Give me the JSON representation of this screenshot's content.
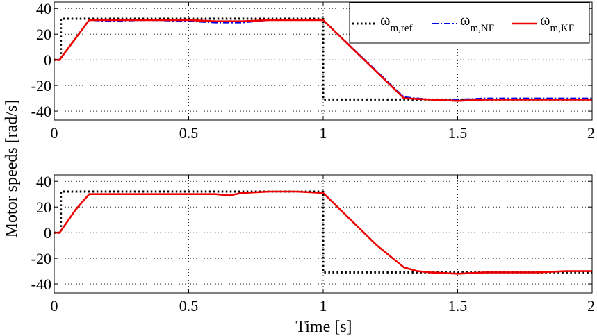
{
  "figure": {
    "ylabel": "Motor speeds [rad/s]",
    "xlabel": "Time [s]"
  },
  "colors": {
    "ref": "#000000",
    "nf": "#0000ee",
    "kf": "#ee0000"
  },
  "chart_data": [
    {
      "type": "line",
      "xlim": [
        0,
        2
      ],
      "ylim": [
        -47,
        45
      ],
      "xticks": [
        0,
        0.5,
        1,
        1.5,
        2
      ],
      "xtick_labels": [
        "0",
        "0.5",
        "1",
        "1.5",
        "2"
      ],
      "yticks": [
        40,
        20,
        0,
        -20,
        -40
      ],
      "ytick_labels": [
        "40",
        "20",
        "0",
        "-20",
        "-40"
      ],
      "grid": true,
      "legend_position": "top-right",
      "legend": [
        {
          "sym": "ω",
          "sub": "m,ref",
          "style": "dotted",
          "color_key": "ref"
        },
        {
          "sym": "ω",
          "sub": "m,NF",
          "style": "dashdot",
          "color_key": "nf"
        },
        {
          "sym": "ω",
          "sub": "m,KF",
          "style": "solid",
          "color_key": "kf"
        }
      ],
      "series": [
        {
          "key": "ref",
          "style": "dotted",
          "x": [
            0,
            0.025,
            0.025,
            1.0,
            1.0,
            2.0
          ],
          "y": [
            0,
            0,
            32,
            32,
            -31,
            -31
          ]
        },
        {
          "key": "nf",
          "style": "dashdot",
          "x": [
            0,
            0.02,
            0.13,
            0.2,
            0.35,
            0.5,
            0.6,
            0.7,
            0.8,
            0.9,
            1.0,
            1.3,
            1.4,
            1.5,
            1.6,
            1.7,
            1.8,
            1.9,
            2.0
          ],
          "y": [
            0,
            0,
            31,
            30,
            31,
            30,
            29,
            29,
            31,
            31,
            31,
            -29,
            -31,
            -31,
            -30,
            -30,
            -30,
            -30,
            -30
          ]
        },
        {
          "key": "kf",
          "style": "solid",
          "x": [
            0,
            0.02,
            0.13,
            0.2,
            0.35,
            0.5,
            0.6,
            0.7,
            0.8,
            0.9,
            1.0,
            1.3,
            1.4,
            1.5,
            1.6,
            1.7,
            1.8,
            1.9,
            2.0
          ],
          "y": [
            0,
            0,
            31,
            31,
            31,
            31,
            30,
            30,
            31,
            31,
            31,
            -30,
            -31,
            -32,
            -31,
            -31,
            -31,
            -31,
            -31
          ]
        }
      ]
    },
    {
      "type": "line",
      "xlim": [
        0,
        2
      ],
      "ylim": [
        -47,
        45
      ],
      "xticks": [
        0,
        0.5,
        1,
        1.5,
        2
      ],
      "xtick_labels": [
        "0",
        "0.5",
        "1",
        "1.5",
        "2"
      ],
      "yticks": [
        40,
        20,
        0,
        -20,
        -40
      ],
      "ytick_labels": [
        "40",
        "20",
        "0",
        "-20",
        "-40"
      ],
      "grid": true,
      "series": [
        {
          "key": "ref",
          "style": "dotted",
          "x": [
            0,
            0.025,
            0.025,
            1.0,
            1.0,
            2.0
          ],
          "y": [
            0,
            0,
            32,
            32,
            -31,
            -31
          ]
        },
        {
          "key": "kf",
          "style": "solid",
          "x": [
            0,
            0.02,
            0.08,
            0.13,
            0.2,
            0.35,
            0.5,
            0.6,
            0.65,
            0.7,
            0.8,
            0.9,
            1.0,
            1.2,
            1.3,
            1.35,
            1.4,
            1.5,
            1.6,
            1.7,
            1.8,
            1.9,
            2.0
          ],
          "y": [
            0,
            0,
            18,
            30,
            30,
            30,
            30,
            30,
            29,
            31,
            32,
            32,
            31,
            -10,
            -27,
            -30,
            -31,
            -32,
            -31,
            -31,
            -31,
            -30,
            -30
          ]
        }
      ]
    }
  ]
}
